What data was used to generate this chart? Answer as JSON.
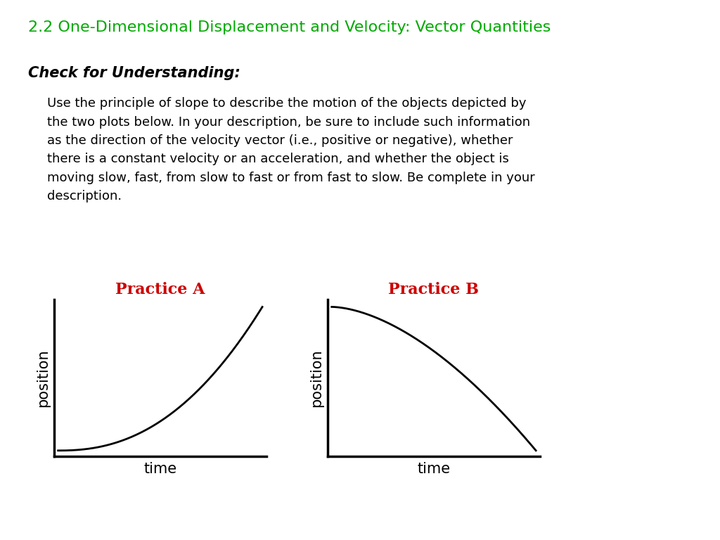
{
  "title": "2.2 One-Dimensional Displacement and Velocity: Vector Quantities",
  "title_color": "#00aa00",
  "title_fontsize": 16,
  "section_header": "Check for Understanding:",
  "body_text": "Use the principle of slope to describe the motion of the objects depicted by\nthe two plots below. In your description, be sure to include such information\nas the direction of the velocity vector (i.e., positive or negative), whether\nthere is a constant velocity or an acceleration, and whether the object is\nmoving slow, fast, from slow to fast or from fast to slow. Be complete in your\ndescription.",
  "practice_a_label": "Practice A",
  "practice_b_label": "Practice B",
  "label_color": "#cc0000",
  "axis_label_color": "#000000",
  "xlabel": "time",
  "ylabel": "position",
  "background_color": "#ffffff",
  "text_color": "#000000",
  "body_fontsize": 13,
  "header_fontsize": 15,
  "axis_label_fontsize": 15,
  "practice_label_fontsize": 16
}
